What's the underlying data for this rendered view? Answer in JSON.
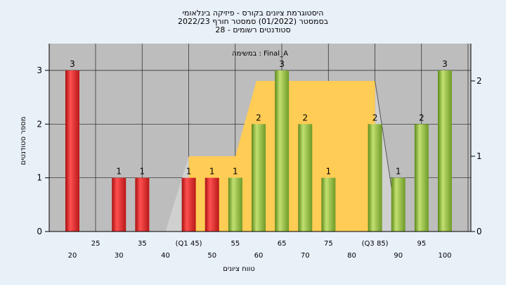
{
  "chart_data": {
    "type": "bar",
    "title_lines": [
      "היסטוגרמת ציונים בקורס - פיזיקה בינלאומי",
      "בסמסטר  (01/2022)  סמסטר חורף  2022/23",
      "סטודנטים רשומים - 28"
    ],
    "annotation": "במשימה : Final_A",
    "ylabel": "מספר סטודנטים",
    "xlabel": "טווח ציונים",
    "ylim": [
      0,
      3.4
    ],
    "y_ticks": [
      "0",
      "1",
      "2",
      "3"
    ],
    "right_ylim": [
      0,
      2.2
    ],
    "right_ticks": [
      "0",
      "1",
      "2"
    ],
    "grid": true,
    "x_tick_labels_upper": [
      "25",
      "35",
      "(Q1 45)",
      "55",
      "65",
      "75",
      "(Q3 85)",
      "95"
    ],
    "x_tick_labels_lower": [
      "20",
      "30",
      "40",
      "50",
      "60",
      "70",
      "80",
      "90",
      "100"
    ],
    "bars": [
      {
        "x": 20,
        "value": 3,
        "label": "3",
        "color": "red"
      },
      {
        "x": 30,
        "value": 1,
        "label": "1",
        "color": "red"
      },
      {
        "x": 35,
        "value": 1,
        "label": "1",
        "color": "red"
      },
      {
        "x": 45,
        "value": 1,
        "label": "1",
        "color": "red"
      },
      {
        "x": 50,
        "value": 1,
        "label": "1",
        "color": "red"
      },
      {
        "x": 55,
        "value": 1,
        "label": "1",
        "color": "green"
      },
      {
        "x": 60,
        "value": 2,
        "label": "2",
        "color": "green"
      },
      {
        "x": 65,
        "value": 3,
        "label": "3",
        "color": "green"
      },
      {
        "x": 70,
        "value": 2,
        "label": "2",
        "color": "green"
      },
      {
        "x": 75,
        "value": 1,
        "label": "1",
        "color": "green"
      },
      {
        "x": 85,
        "value": 2,
        "label": "2",
        "color": "green"
      },
      {
        "x": 90,
        "value": 1,
        "label": "1",
        "color": "green"
      },
      {
        "x": 95,
        "value": 2,
        "label": "2",
        "color": "green"
      },
      {
        "x": 100,
        "value": 3,
        "label": "3",
        "color": "green"
      }
    ],
    "box_plot": {
      "whisker_low": 40,
      "q1": 45,
      "median": 55,
      "q3": 85,
      "whisker_high": 90
    },
    "colors": {
      "background": "#e8f0f8",
      "plot_bg": "#bdbdbd",
      "box_fill": "#ffcc55",
      "whisker_fill": "#d0d0d0",
      "red_bar": "#e8302e",
      "green_bar": "#95c43e"
    }
  }
}
